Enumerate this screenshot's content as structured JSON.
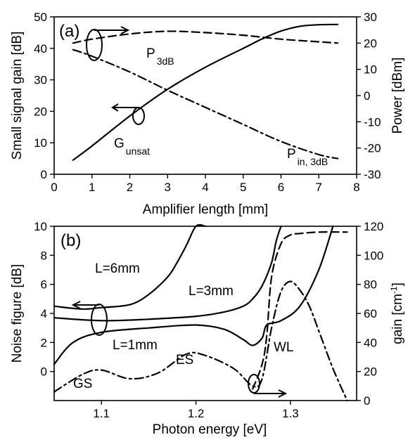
{
  "chart_data": [
    {
      "panel": "(a)",
      "type": "line",
      "xlabel": "Amplifier length [mm]",
      "ylabel_left": "Small signal gain [dB]",
      "ylabel_right": "Power [dBm]",
      "xlim": [
        0,
        8
      ],
      "ylim_left": [
        0,
        50
      ],
      "ylim_right": [
        -30,
        30
      ],
      "xticks": [
        "0",
        "1",
        "2",
        "3",
        "4",
        "5",
        "6",
        "7",
        "8"
      ],
      "yticks_left": [
        "0",
        "10",
        "20",
        "30",
        "40",
        "50"
      ],
      "yticks_right": [
        "-30",
        "-20",
        "-10",
        "0",
        "10",
        "20",
        "30"
      ],
      "series": [
        {
          "name": "G",
          "name_sub": "unsat",
          "axis": "left",
          "style": "solid",
          "x": [
            0.5,
            1,
            2,
            3,
            4,
            5,
            5.5,
            6,
            6.5,
            7,
            7.5
          ],
          "y": [
            4.5,
            9,
            18.5,
            27,
            34,
            40,
            43,
            45.5,
            47,
            47.5,
            47.6
          ]
        },
        {
          "name": "P",
          "name_sub": "3dB",
          "axis": "right",
          "style": "dashed",
          "x": [
            0.5,
            1,
            2,
            3,
            4,
            5,
            6,
            7,
            7.5
          ],
          "y": [
            20,
            21.5,
            23.5,
            24.5,
            24,
            23,
            21.5,
            20.5,
            20
          ]
        },
        {
          "name": "P",
          "name_sub": "in, 3dB",
          "axis": "right",
          "style": "dashdot",
          "x": [
            0.5,
            1,
            2,
            3,
            4,
            5,
            6,
            7,
            7.5
          ],
          "y": [
            17.5,
            15,
            9,
            2,
            -4.5,
            -11,
            -17.5,
            -22.5,
            -24
          ]
        }
      ],
      "annotations": [
        "(a)"
      ]
    },
    {
      "panel": "(b)",
      "type": "line",
      "xlabel": "Photon energy [eV]",
      "ylabel_left": "Noise figure [dB]",
      "ylabel_right": "gain [cm",
      "ylabel_right_sup": "-1",
      "ylabel_right_end": "]",
      "xlim": [
        1.05,
        1.37
      ],
      "ylim_left": [
        -2,
        10
      ],
      "ylim_right": [
        0,
        120
      ],
      "xticks": [
        "1.1",
        "1.2",
        "1.3"
      ],
      "yticks_left": [
        "0",
        "2",
        "4",
        "6",
        "8",
        "10"
      ],
      "yticks_right": [
        "0",
        "20",
        "40",
        "60",
        "80",
        "100",
        "120"
      ],
      "series": [
        {
          "name": "L=6mm",
          "axis": "left",
          "style": "solid",
          "x": [
            1.05,
            1.08,
            1.1,
            1.13,
            1.15,
            1.17,
            1.18,
            1.19,
            1.2,
            1.21
          ],
          "y": [
            4.5,
            4.3,
            4.4,
            4.6,
            5.3,
            6.5,
            7.5,
            8.7,
            10,
            11
          ]
        },
        {
          "name": "L=3mm",
          "axis": "left",
          "style": "solid",
          "x": [
            1.05,
            1.1,
            1.15,
            1.2,
            1.23,
            1.25,
            1.26,
            1.27,
            1.28,
            1.285,
            1.29
          ],
          "y": [
            3.7,
            3.5,
            3.6,
            3.8,
            4.1,
            4.5,
            5.0,
            5.9,
            7.5,
            9,
            10.3
          ]
        },
        {
          "name": "L=1mm",
          "axis": "left",
          "style": "solid",
          "x": [
            1.05,
            1.07,
            1.1,
            1.15,
            1.2,
            1.23,
            1.25,
            1.26,
            1.27,
            1.275,
            1.29,
            1.31,
            1.33,
            1.345
          ],
          "y": [
            0.5,
            2.0,
            2.7,
            3.0,
            3.2,
            2.9,
            2.2,
            1.8,
            2.3,
            3.2,
            3.5,
            4.5,
            7.0,
            10
          ]
        },
        {
          "name": "gain",
          "axis": "right",
          "style": "dashdot",
          "x": [
            1.05,
            1.08,
            1.1,
            1.13,
            1.16,
            1.19,
            1.21,
            1.24,
            1.26,
            1.27,
            1.28,
            1.29,
            1.3,
            1.31,
            1.32,
            1.33,
            1.345,
            1.36
          ],
          "y": [
            6,
            18,
            21,
            15,
            19,
            32,
            31,
            22,
            10,
            15,
            50,
            75,
            82,
            76,
            65,
            48,
            22,
            0
          ]
        },
        {
          "name": "gain (dashed)",
          "axis": "right",
          "style": "dashed",
          "x": [
            1.26,
            1.27,
            1.275,
            1.28,
            1.29,
            1.3,
            1.31,
            1.33,
            1.36
          ],
          "y": [
            8,
            25,
            45,
            85,
            108,
            114,
            115,
            116,
            116
          ]
        }
      ],
      "annotations": [
        "(b)",
        "L=6mm",
        "L=3mm",
        "L=1mm",
        "GS",
        "ES",
        "WL"
      ]
    }
  ]
}
